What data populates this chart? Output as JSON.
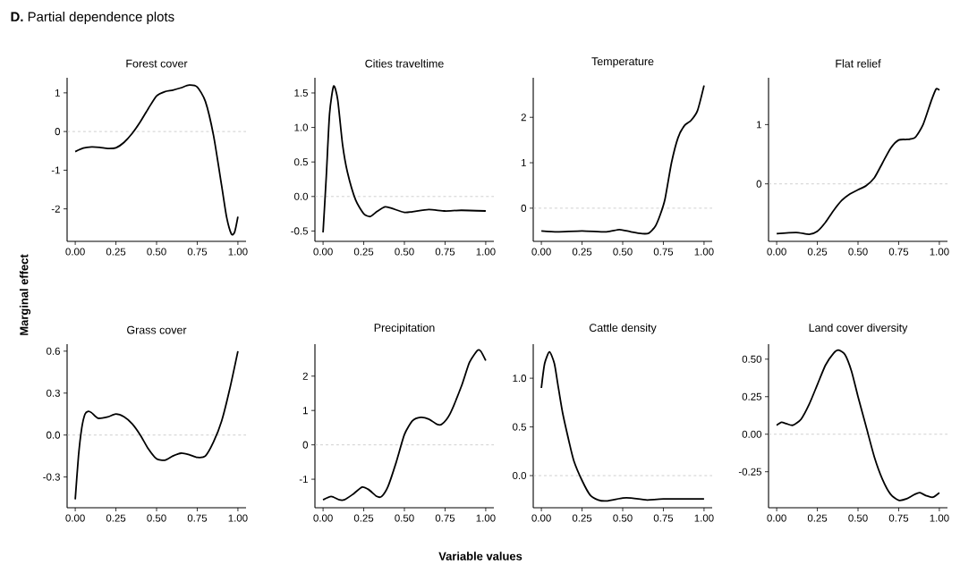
{
  "chart_data": [
    {
      "type": "line",
      "title": "Forest cover",
      "annotations": [
        "**D.** Partial dependence plots",
        "Marginal effect",
        "Variable values"
      ],
      "color": "#000000",
      "xlim": [
        -0.05,
        1.05
      ],
      "ylim": [
        -2.84,
        1.39
      ],
      "xticks": [
        {
          "value": 0,
          "label": "0.00"
        },
        {
          "value": 0.25,
          "label": "0.25"
        },
        {
          "value": 0.5,
          "label": "0.50"
        },
        {
          "value": 0.75,
          "label": "0.75"
        },
        {
          "value": 1,
          "label": "1.00"
        }
      ],
      "yticks": [
        1,
        0,
        -1,
        -2
      ],
      "ref_lines": [
        {
          "axis": "y",
          "value": 0,
          "color": "#bbbbbb",
          "line_style": "dashed"
        }
      ],
      "x": [
        0,
        0.05,
        0.1,
        0.15,
        0.2,
        0.25,
        0.3,
        0.35,
        0.4,
        0.45,
        0.5,
        0.55,
        0.6,
        0.65,
        0.7,
        0.75,
        0.8,
        0.85,
        0.9,
        0.93,
        0.96,
        0.98,
        1.0
      ],
      "values": [
        -0.52,
        -0.43,
        -0.4,
        -0.41,
        -0.44,
        -0.42,
        -0.28,
        -0.05,
        0.25,
        0.6,
        0.92,
        1.03,
        1.07,
        1.13,
        1.2,
        1.15,
        0.78,
        -0.1,
        -1.4,
        -2.2,
        -2.65,
        -2.6,
        -2.2
      ]
    },
    {
      "type": "line",
      "title": "Cities traveltime",
      "color": "#000000",
      "xlim": [
        -0.05,
        1.05
      ],
      "ylim": [
        -0.65,
        1.72
      ],
      "xticks": [
        {
          "value": 0,
          "label": "0.00"
        },
        {
          "value": 0.25,
          "label": "0.25"
        },
        {
          "value": 0.5,
          "label": "0.50"
        },
        {
          "value": 0.75,
          "label": "0.75"
        },
        {
          "value": 1,
          "label": "1.00"
        }
      ],
      "yticks": [
        1.5,
        {
          "value": 1,
          "label": "1.0"
        },
        0.5,
        {
          "value": 0,
          "label": "0.0"
        },
        -0.5
      ],
      "ref_lines": [
        {
          "axis": "y",
          "value": 0,
          "color": "#bbbbbb",
          "line_style": "dashed"
        }
      ],
      "x": [
        0,
        0.02,
        0.04,
        0.065,
        0.09,
        0.12,
        0.15,
        0.2,
        0.25,
        0.29,
        0.33,
        0.38,
        0.42,
        0.5,
        0.55,
        0.65,
        0.75,
        0.85,
        1.0
      ],
      "values": [
        -0.52,
        0.3,
        1.2,
        1.6,
        1.4,
        0.75,
        0.35,
        -0.05,
        -0.25,
        -0.29,
        -0.22,
        -0.15,
        -0.17,
        -0.23,
        -0.22,
        -0.19,
        -0.21,
        -0.2,
        -0.21
      ]
    },
    {
      "type": "line",
      "title": "Temperature",
      "color": "#000000",
      "xlim": [
        -0.05,
        1.05
      ],
      "ylim": [
        -0.73,
        2.87
      ],
      "xticks": [
        {
          "value": 0,
          "label": "0.00"
        },
        {
          "value": 0.25,
          "label": "0.25"
        },
        {
          "value": 0.5,
          "label": "0.50"
        },
        {
          "value": 0.75,
          "label": "0.75"
        },
        {
          "value": 1,
          "label": "1.00"
        }
      ],
      "yticks": [
        2,
        1,
        0
      ],
      "ref_lines": [
        {
          "axis": "y",
          "value": 0,
          "color": "#bbbbbb",
          "line_style": "dashed"
        }
      ],
      "x": [
        0,
        0.1,
        0.25,
        0.4,
        0.48,
        0.55,
        0.62,
        0.66,
        0.7,
        0.73,
        0.76,
        0.8,
        0.84,
        0.88,
        0.92,
        0.96,
        1.0
      ],
      "values": [
        -0.5,
        -0.52,
        -0.5,
        -0.52,
        -0.47,
        -0.52,
        -0.56,
        -0.55,
        -0.4,
        -0.15,
        0.2,
        1.0,
        1.55,
        1.82,
        1.93,
        2.15,
        2.7
      ]
    },
    {
      "type": "line",
      "title": "Flat relief",
      "color": "#000000",
      "xlim": [
        -0.05,
        1.05
      ],
      "ylim": [
        -0.97,
        1.79
      ],
      "xticks": [
        {
          "value": 0,
          "label": "0.00"
        },
        {
          "value": 0.25,
          "label": "0.25"
        },
        {
          "value": 0.5,
          "label": "0.50"
        },
        {
          "value": 0.75,
          "label": "0.75"
        },
        {
          "value": 1,
          "label": "1.00"
        }
      ],
      "yticks": [
        1,
        0
      ],
      "ref_lines": [
        {
          "axis": "y",
          "value": 0,
          "color": "#bbbbbb",
          "line_style": "dashed"
        }
      ],
      "x": [
        0,
        0.12,
        0.2,
        0.25,
        0.3,
        0.35,
        0.4,
        0.45,
        0.5,
        0.55,
        0.6,
        0.65,
        0.7,
        0.75,
        0.8,
        0.85,
        0.9,
        0.95,
        0.98,
        1.0
      ],
      "values": [
        -0.84,
        -0.82,
        -0.85,
        -0.8,
        -0.65,
        -0.45,
        -0.28,
        -0.17,
        -0.1,
        -0.03,
        0.1,
        0.35,
        0.6,
        0.74,
        0.75,
        0.78,
        1.0,
        1.4,
        1.6,
        1.58
      ]
    },
    {
      "type": "line",
      "title": "Grass cover",
      "color": "#000000",
      "xlim": [
        -0.05,
        1.05
      ],
      "ylim": [
        -0.52,
        0.65
      ],
      "xticks": [
        {
          "value": 0,
          "label": "0.00"
        },
        {
          "value": 0.25,
          "label": "0.25"
        },
        {
          "value": 0.5,
          "label": "0.50"
        },
        {
          "value": 0.75,
          "label": "0.75"
        },
        {
          "value": 1,
          "label": "1.00"
        }
      ],
      "yticks": [
        0.6,
        0.3,
        {
          "value": 0,
          "label": "0.0"
        },
        -0.3
      ],
      "ref_lines": [
        {
          "axis": "y",
          "value": 0,
          "color": "#bbbbbb",
          "line_style": "dashed"
        }
      ],
      "x": [
        0,
        0.02,
        0.04,
        0.06,
        0.08,
        0.1,
        0.14,
        0.2,
        0.25,
        0.3,
        0.35,
        0.4,
        0.45,
        0.5,
        0.55,
        0.6,
        0.65,
        0.7,
        0.75,
        0.8,
        0.85,
        0.9,
        0.95,
        1.0
      ],
      "values": [
        -0.46,
        -0.15,
        0.05,
        0.15,
        0.17,
        0.16,
        0.12,
        0.13,
        0.15,
        0.13,
        0.08,
        0.0,
        -0.1,
        -0.17,
        -0.18,
        -0.15,
        -0.13,
        -0.14,
        -0.16,
        -0.15,
        -0.05,
        0.1,
        0.33,
        0.6
      ]
    },
    {
      "type": "line",
      "title": "Precipitation",
      "color": "#000000",
      "xlim": [
        -0.05,
        1.05
      ],
      "ylim": [
        -1.83,
        2.93
      ],
      "xticks": [
        {
          "value": 0,
          "label": "0.00"
        },
        {
          "value": 0.25,
          "label": "0.25"
        },
        {
          "value": 0.5,
          "label": "0.50"
        },
        {
          "value": 0.75,
          "label": "0.75"
        },
        {
          "value": 1,
          "label": "1.00"
        }
      ],
      "yticks": [
        2,
        1,
        0,
        -1
      ],
      "ref_lines": [
        {
          "axis": "y",
          "value": 0,
          "color": "#bbbbbb",
          "line_style": "dashed"
        }
      ],
      "x": [
        0,
        0.05,
        0.1,
        0.13,
        0.18,
        0.24,
        0.28,
        0.33,
        0.36,
        0.4,
        0.45,
        0.5,
        0.55,
        0.6,
        0.65,
        0.7,
        0.73,
        0.78,
        0.85,
        0.9,
        0.95,
        0.97,
        1.0
      ],
      "values": [
        -1.6,
        -1.5,
        -1.6,
        -1.6,
        -1.45,
        -1.23,
        -1.3,
        -1.5,
        -1.5,
        -1.2,
        -0.5,
        0.3,
        0.7,
        0.8,
        0.75,
        0.6,
        0.6,
        0.9,
        1.7,
        2.4,
        2.75,
        2.72,
        2.45
      ]
    },
    {
      "type": "line",
      "title": "Cattle density",
      "color": "#000000",
      "xlim": [
        -0.05,
        1.05
      ],
      "ylim": [
        -0.33,
        1.35
      ],
      "xticks": [
        {
          "value": 0,
          "label": "0.00"
        },
        {
          "value": 0.25,
          "label": "0.25"
        },
        {
          "value": 0.5,
          "label": "0.50"
        },
        {
          "value": 0.75,
          "label": "0.75"
        },
        {
          "value": 1,
          "label": "1.00"
        }
      ],
      "yticks": [
        {
          "value": 1,
          "label": "1.0"
        },
        0.5,
        {
          "value": 0,
          "label": "0.0"
        }
      ],
      "ref_lines": [
        {
          "axis": "y",
          "value": 0,
          "color": "#bbbbbb",
          "line_style": "dashed"
        }
      ],
      "x": [
        0,
        0.02,
        0.05,
        0.08,
        0.1,
        0.13,
        0.17,
        0.2,
        0.25,
        0.3,
        0.35,
        0.4,
        0.5,
        0.55,
        0.65,
        0.75,
        1.0
      ],
      "values": [
        0.9,
        1.15,
        1.27,
        1.15,
        0.95,
        0.65,
        0.35,
        0.15,
        -0.05,
        -0.2,
        -0.25,
        -0.26,
        -0.23,
        -0.23,
        -0.25,
        -0.24,
        -0.24
      ]
    },
    {
      "type": "line",
      "title": "Land cover diversity",
      "color": "#000000",
      "xlim": [
        -0.05,
        1.05
      ],
      "ylim": [
        -0.49,
        0.6
      ],
      "xticks": [
        {
          "value": 0,
          "label": "0.00"
        },
        {
          "value": 0.25,
          "label": "0.25"
        },
        {
          "value": 0.5,
          "label": "0.50"
        },
        {
          "value": 0.75,
          "label": "0.75"
        },
        {
          "value": 1,
          "label": "1.00"
        }
      ],
      "yticks": [
        {
          "value": 0.5,
          "label": "0.50"
        },
        0.25,
        {
          "value": 0,
          "label": "0.00"
        },
        -0.25
      ],
      "ref_lines": [
        {
          "axis": "y",
          "value": 0,
          "color": "#bbbbbb",
          "line_style": "dashed"
        }
      ],
      "x": [
        0,
        0.03,
        0.06,
        0.1,
        0.15,
        0.2,
        0.25,
        0.3,
        0.35,
        0.38,
        0.42,
        0.46,
        0.5,
        0.55,
        0.6,
        0.65,
        0.7,
        0.75,
        0.8,
        0.85,
        0.88,
        0.92,
        0.96,
        1.0
      ],
      "values": [
        0.06,
        0.08,
        0.07,
        0.06,
        0.1,
        0.2,
        0.33,
        0.46,
        0.54,
        0.56,
        0.53,
        0.42,
        0.25,
        0.05,
        -0.15,
        -0.3,
        -0.4,
        -0.44,
        -0.43,
        -0.4,
        -0.39,
        -0.41,
        -0.42,
        -0.39
      ]
    }
  ]
}
